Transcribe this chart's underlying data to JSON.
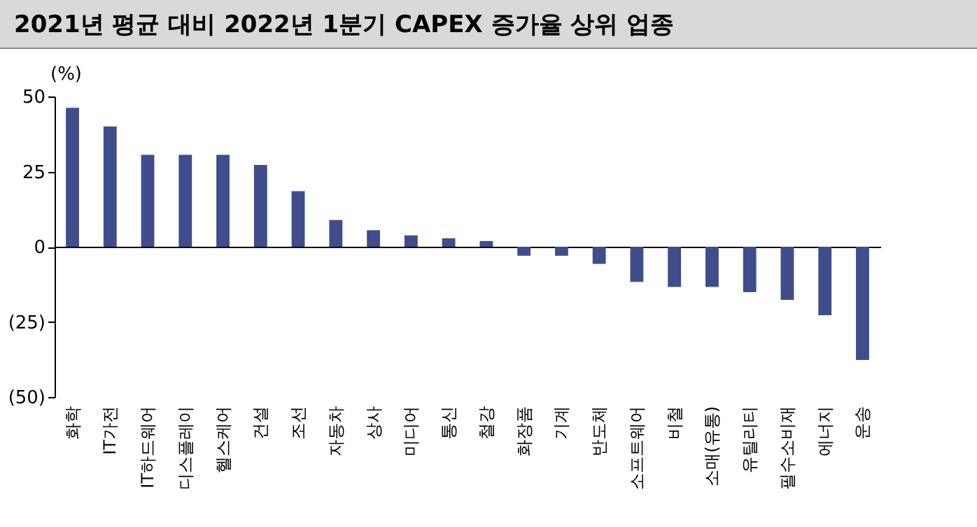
{
  "chart_data": {
    "type": "bar",
    "title": "2021년 평균 대비 2022년 1분기 CAPEX 증가율 상위 업종",
    "ylabel": "(%)",
    "categories": [
      "화학",
      "IT가전",
      "IT하드웨어",
      "디스플레이",
      "헬스케어",
      "건설",
      "조선",
      "자동차",
      "상사",
      "미디어",
      "통신",
      "철강",
      "화장품",
      "기계",
      "반도체",
      "소프트웨어",
      "비철",
      "소매(유통)",
      "유틸리티",
      "필수소비재",
      "에너지",
      "운송"
    ],
    "values": [
      46.2,
      40,
      30.6,
      30.6,
      30.6,
      27.2,
      18.5,
      8.9,
      5.5,
      3.8,
      2.8,
      1.9,
      -3,
      -3,
      -5.7,
      -11.7,
      -13.4,
      -13.4,
      -15.1,
      -17.7,
      -22.8,
      -37.7
    ],
    "color": "#3f4d8c",
    "ylim": [
      -50,
      50
    ],
    "yticks": [
      {
        "value": -50,
        "label": "(50)"
      },
      {
        "value": -25,
        "label": "(25)"
      },
      0,
      25,
      50
    ]
  }
}
